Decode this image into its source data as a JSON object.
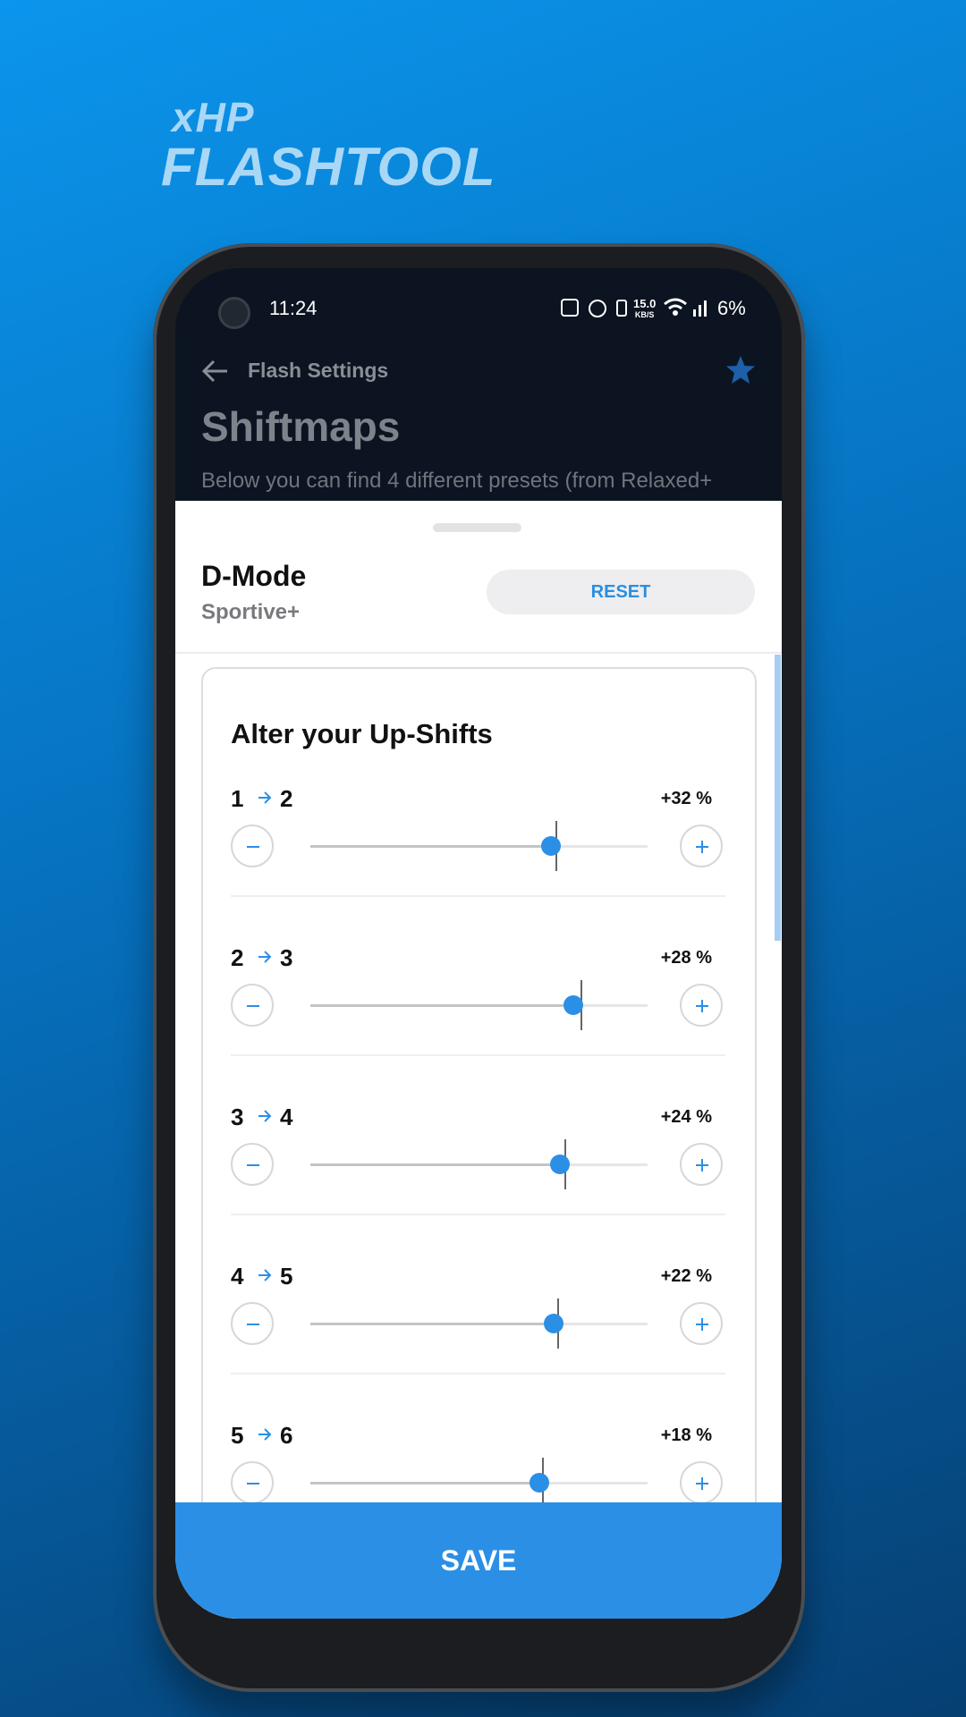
{
  "logo": {
    "brand_small": "xHP",
    "brand_large": "FLASHTOOL"
  },
  "status_bar": {
    "time": "11:24",
    "speed": "15.0",
    "speed_unit": "KB/S",
    "battery": "6%"
  },
  "header": {
    "back_title": "Flash Settings",
    "title": "Shiftmaps",
    "description": "Below you can find 4 different presets (from Relaxed+"
  },
  "sheet": {
    "mode": "D-Mode",
    "preset": "Sportive+",
    "reset_button": "RESET",
    "card_title": "Alter your Up-Shifts",
    "shifts": [
      {
        "from": "1",
        "to": "2",
        "value": "+32 %"
      },
      {
        "from": "2",
        "to": "3",
        "value": "+28 %"
      },
      {
        "from": "3",
        "to": "4",
        "value": "+24 %"
      },
      {
        "from": "4",
        "to": "5",
        "value": "+22 %"
      },
      {
        "from": "5",
        "to": "6",
        "value": "+18 %"
      }
    ]
  },
  "save_button": "SAVE"
}
